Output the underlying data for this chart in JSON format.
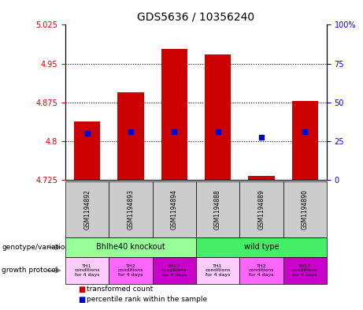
{
  "title": "GDS5636 / 10356240",
  "samples": [
    "GSM1194892",
    "GSM1194893",
    "GSM1194894",
    "GSM1194888",
    "GSM1194889",
    "GSM1194890"
  ],
  "bar_bottom": 4.725,
  "bar_tops": [
    4.838,
    4.895,
    4.978,
    4.968,
    4.732,
    4.878
  ],
  "percentile_values": [
    4.815,
    4.818,
    4.818,
    4.818,
    4.807,
    4.818
  ],
  "ylim_left": [
    4.725,
    5.025
  ],
  "ylim_right": [
    0,
    100
  ],
  "yticks_left": [
    4.725,
    4.8,
    4.875,
    4.95,
    5.025
  ],
  "yticks_right": [
    0,
    25,
    50,
    75,
    100
  ],
  "ytick_labels_left": [
    "4.725",
    "4.8",
    "4.875",
    "4.95",
    "5.025"
  ],
  "ytick_labels_right": [
    "0",
    "25",
    "50",
    "75",
    "100%"
  ],
  "hlines": [
    4.8,
    4.875,
    4.95
  ],
  "bar_color": "#cc0000",
  "percentile_color": "#0000cc",
  "bar_width": 0.6,
  "figure_bg": "#ffffff",
  "axes_bg": "#ffffff",
  "left_tick_color": "#cc0000",
  "right_tick_color": "#0000cc",
  "knockout_color": "#99ff99",
  "wildtype_color": "#44ee66",
  "growth_colors": [
    "#ffccff",
    "#ff66ff",
    "#cc00cc",
    "#ffccff",
    "#ff66ff",
    "#cc00cc"
  ],
  "growth_texts": [
    "TH1\nconditions\nfor 4 days",
    "TH2\nconditions\nfor 4 days",
    "TH17\nconditions\nfor 4 days",
    "TH1\nconditions\nfor 4 days",
    "TH2\nconditions\nfor 4 days",
    "TH17\nconditions\nfor 4 days"
  ]
}
